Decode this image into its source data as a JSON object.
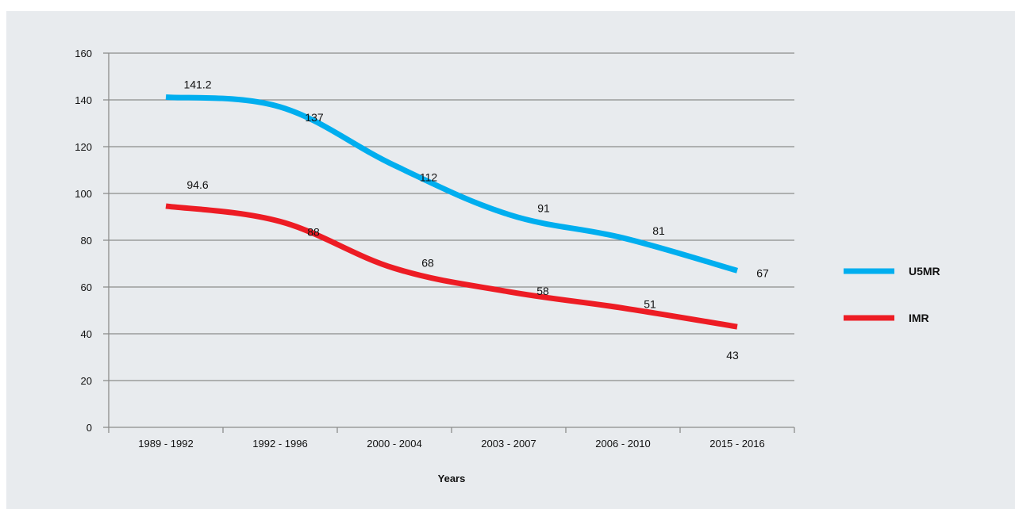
{
  "colors": {
    "background": "#e8ebee",
    "grid": "#8c8c8c",
    "axis": "#8c8c8c"
  },
  "chart_data": {
    "type": "line",
    "title": "",
    "xlabel": "Years",
    "ylabel": "",
    "categories": [
      "1989 - 1992",
      "1992 - 1996",
      "2000 - 2004",
      "2003 - 2007",
      "2006 - 2010",
      "2015 - 2016"
    ],
    "series": [
      {
        "name": "U5MR",
        "color": "#00aeef",
        "values": [
          141.2,
          137,
          112,
          91,
          81,
          67
        ],
        "labels": [
          "141.2",
          "137",
          "112",
          "91",
          "81",
          "67"
        ]
      },
      {
        "name": "IMR",
        "color": "#ed1c24",
        "values": [
          94.6,
          88,
          68,
          58,
          51,
          43
        ],
        "labels": [
          "94.6",
          "88",
          "68",
          "58",
          "51",
          "43"
        ]
      }
    ],
    "ylim": [
      0,
      160
    ],
    "yticks": [
      0,
      20,
      40,
      60,
      80,
      100,
      120,
      140,
      160
    ],
    "grid": true,
    "legend_position": "right"
  }
}
